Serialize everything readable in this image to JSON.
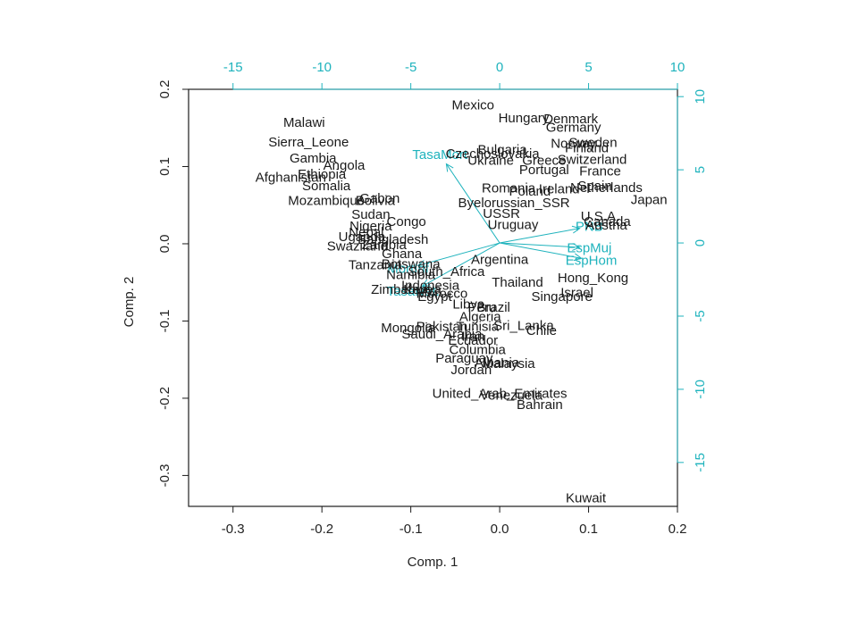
{
  "colors": {
    "text": "#1a1a1a",
    "accent": "#1fb3bd"
  },
  "chart_data": {
    "type": "scatter",
    "subtype": "biplot",
    "xlabel": "Comp. 1",
    "ylabel": "Comp. 2",
    "xlim": [
      -0.35,
      0.2
    ],
    "ylim": [
      -0.34,
      0.2
    ],
    "xticks": [
      -0.3,
      -0.2,
      -0.1,
      0.0,
      0.1,
      0.2
    ],
    "xtick_labels": [
      "-0.3",
      "-0.2",
      "-0.1",
      "0.0",
      "0.1",
      "0.2"
    ],
    "yticks": [
      -0.3,
      -0.2,
      -0.1,
      0.0,
      0.1,
      0.2
    ],
    "ytick_labels": [
      "-0.3",
      "-0.2",
      "-0.1",
      "0.0",
      "0.1",
      "0.2"
    ],
    "secondary_xlim": [
      -17.5,
      10
    ],
    "secondary_ylim": [
      -18,
      10.5
    ],
    "secondary_xticks": [
      -15,
      -10,
      -5,
      0,
      5,
      10
    ],
    "secondary_xtick_labels": [
      "-15",
      "-10",
      "-5",
      "0",
      "5",
      "10"
    ],
    "secondary_yticks": [
      -15,
      -10,
      -5,
      0,
      5,
      10
    ],
    "secondary_ytick_labels": [
      "-15",
      "-10",
      "-5",
      "0",
      "5",
      "10"
    ],
    "grid": false,
    "points": [
      {
        "label": "Mexico",
        "x": -0.03,
        "y": 0.18
      },
      {
        "label": "Malawi",
        "x": -0.22,
        "y": 0.157
      },
      {
        "label": "Sierra_Leone",
        "x": -0.215,
        "y": 0.132
      },
      {
        "label": "Gambia",
        "x": -0.21,
        "y": 0.111
      },
      {
        "label": "Angola",
        "x": -0.175,
        "y": 0.102
      },
      {
        "label": "Ethiopia",
        "x": -0.2,
        "y": 0.09
      },
      {
        "label": "Afghanistan",
        "x": -0.235,
        "y": 0.086
      },
      {
        "label": "Somalia",
        "x": -0.195,
        "y": 0.075
      },
      {
        "label": "Mozambique",
        "x": -0.195,
        "y": 0.056
      },
      {
        "label": "Gabon",
        "x": -0.135,
        "y": 0.059
      },
      {
        "label": "Bolivia",
        "x": -0.14,
        "y": 0.056
      },
      {
        "label": "Sudan",
        "x": -0.145,
        "y": 0.038
      },
      {
        "label": "Congo",
        "x": -0.105,
        "y": 0.029
      },
      {
        "label": "Nigeria",
        "x": -0.145,
        "y": 0.023
      },
      {
        "label": "Nepal",
        "x": -0.15,
        "y": 0.015
      },
      {
        "label": "Uganda",
        "x": -0.155,
        "y": 0.009
      },
      {
        "label": "Bangladesh",
        "x": -0.12,
        "y": 0.006
      },
      {
        "label": "Swaziland",
        "x": -0.16,
        "y": -0.003
      },
      {
        "label": "Zambia",
        "x": -0.13,
        "y": -0.001
      },
      {
        "label": "Ghana",
        "x": -0.11,
        "y": -0.013
      },
      {
        "label": "Tanzania",
        "x": -0.14,
        "y": -0.027
      },
      {
        "label": "Botswana",
        "x": -0.1,
        "y": -0.026
      },
      {
        "label": "Namibia",
        "x": -0.1,
        "y": -0.04
      },
      {
        "label": "South_Africa",
        "x": -0.06,
        "y": -0.036
      },
      {
        "label": "Indonesia",
        "x": -0.078,
        "y": -0.054
      },
      {
        "label": "Thailand",
        "x": 0.02,
        "y": -0.05
      },
      {
        "label": "Zimbabwe",
        "x": -0.11,
        "y": -0.059
      },
      {
        "label": "Kenya",
        "x": -0.087,
        "y": -0.059
      },
      {
        "label": "Morocco",
        "x": -0.065,
        "y": -0.064
      },
      {
        "label": "Egypt",
        "x": -0.073,
        "y": -0.068
      },
      {
        "label": "Libya",
        "x": -0.035,
        "y": -0.078
      },
      {
        "label": "Peru",
        "x": -0.02,
        "y": -0.082
      },
      {
        "label": "Brazil",
        "x": -0.007,
        "y": -0.082
      },
      {
        "label": "Algeria",
        "x": -0.022,
        "y": -0.094
      },
      {
        "label": "Mongolia",
        "x": -0.103,
        "y": -0.109
      },
      {
        "label": "Pakistan",
        "x": -0.065,
        "y": -0.107
      },
      {
        "label": "Tunisia",
        "x": -0.025,
        "y": -0.107
      },
      {
        "label": "Sri_Lanka",
        "x": 0.027,
        "y": -0.106
      },
      {
        "label": "Chile",
        "x": 0.047,
        "y": -0.112
      },
      {
        "label": "Saudi_Arabia",
        "x": -0.065,
        "y": -0.117
      },
      {
        "label": "Iran",
        "x": -0.03,
        "y": -0.12
      },
      {
        "label": "Ecuador",
        "x": -0.03,
        "y": -0.125
      },
      {
        "label": "Columbia",
        "x": -0.025,
        "y": -0.137
      },
      {
        "label": "Paraguay",
        "x": -0.04,
        "y": -0.148
      },
      {
        "label": "Malaysia",
        "x": 0.01,
        "y": -0.155
      },
      {
        "label": "Albania",
        "x": -0.003,
        "y": -0.154
      },
      {
        "label": "Jordan",
        "x": -0.032,
        "y": -0.163
      },
      {
        "label": "United_Arab_Emirates",
        "x": 0.0,
        "y": -0.194
      },
      {
        "label": "Venezuela",
        "x": 0.013,
        "y": -0.196
      },
      {
        "label": "Bahrain",
        "x": 0.045,
        "y": -0.208
      },
      {
        "label": "Argentina",
        "x": 0.0,
        "y": -0.02
      },
      {
        "label": "Hong_Kong",
        "x": 0.105,
        "y": -0.044
      },
      {
        "label": "Israel",
        "x": 0.087,
        "y": -0.063
      },
      {
        "label": "Singapore",
        "x": 0.07,
        "y": -0.068
      },
      {
        "label": "Kuwait",
        "x": 0.097,
        "y": -0.329
      },
      {
        "label": "Hungary",
        "x": 0.027,
        "y": 0.163
      },
      {
        "label": "Denmark",
        "x": 0.08,
        "y": 0.162
      },
      {
        "label": "Germany",
        "x": 0.083,
        "y": 0.151
      },
      {
        "label": "Norway",
        "x": 0.083,
        "y": 0.13
      },
      {
        "label": "Sweden",
        "x": 0.105,
        "y": 0.131
      },
      {
        "label": "Finland",
        "x": 0.098,
        "y": 0.124
      },
      {
        "label": "Bulgaria",
        "x": 0.003,
        "y": 0.122
      },
      {
        "label": "Czechoslovakia",
        "x": -0.008,
        "y": 0.117
      },
      {
        "label": "Switzerland",
        "x": 0.104,
        "y": 0.109
      },
      {
        "label": "Ukraine",
        "x": -0.01,
        "y": 0.108
      },
      {
        "label": "Greece",
        "x": 0.05,
        "y": 0.108
      },
      {
        "label": "Portugal",
        "x": 0.05,
        "y": 0.096
      },
      {
        "label": "France",
        "x": 0.113,
        "y": 0.094
      },
      {
        "label": "Spain",
        "x": 0.107,
        "y": 0.075
      },
      {
        "label": "Netherlands",
        "x": 0.12,
        "y": 0.073
      },
      {
        "label": "Romania",
        "x": 0.01,
        "y": 0.072
      },
      {
        "label": "Poland",
        "x": 0.034,
        "y": 0.068
      },
      {
        "label": "Ireland",
        "x": 0.067,
        "y": 0.071
      },
      {
        "label": "Japan",
        "x": 0.168,
        "y": 0.057
      },
      {
        "label": "Byelorussian_SSR",
        "x": 0.016,
        "y": 0.053
      },
      {
        "label": "USSR",
        "x": 0.002,
        "y": 0.039
      },
      {
        "label": "U.S.A.",
        "x": 0.113,
        "y": 0.036
      },
      {
        "label": "Canada",
        "x": 0.121,
        "y": 0.029
      },
      {
        "label": "Uruguay",
        "x": 0.015,
        "y": 0.025
      },
      {
        "label": "Austria",
        "x": 0.12,
        "y": 0.024
      }
    ],
    "vectors": [
      {
        "label": "TasaMort",
        "x_end": -3.0,
        "y_end": 5.4
      },
      {
        "label": "MortInf",
        "x_end": -4.6,
        "y_end": -1.55
      },
      {
        "label": "TasaNat.",
        "x_end": -4.35,
        "y_end": -2.95
      },
      {
        "label": "PNB",
        "x_end": 4.5,
        "y_end": 1.0
      },
      {
        "label": "EspMuj",
        "x_end": 4.5,
        "y_end": -0.3
      },
      {
        "label": "EspHom",
        "x_end": 4.6,
        "y_end": -1.05
      }
    ]
  }
}
